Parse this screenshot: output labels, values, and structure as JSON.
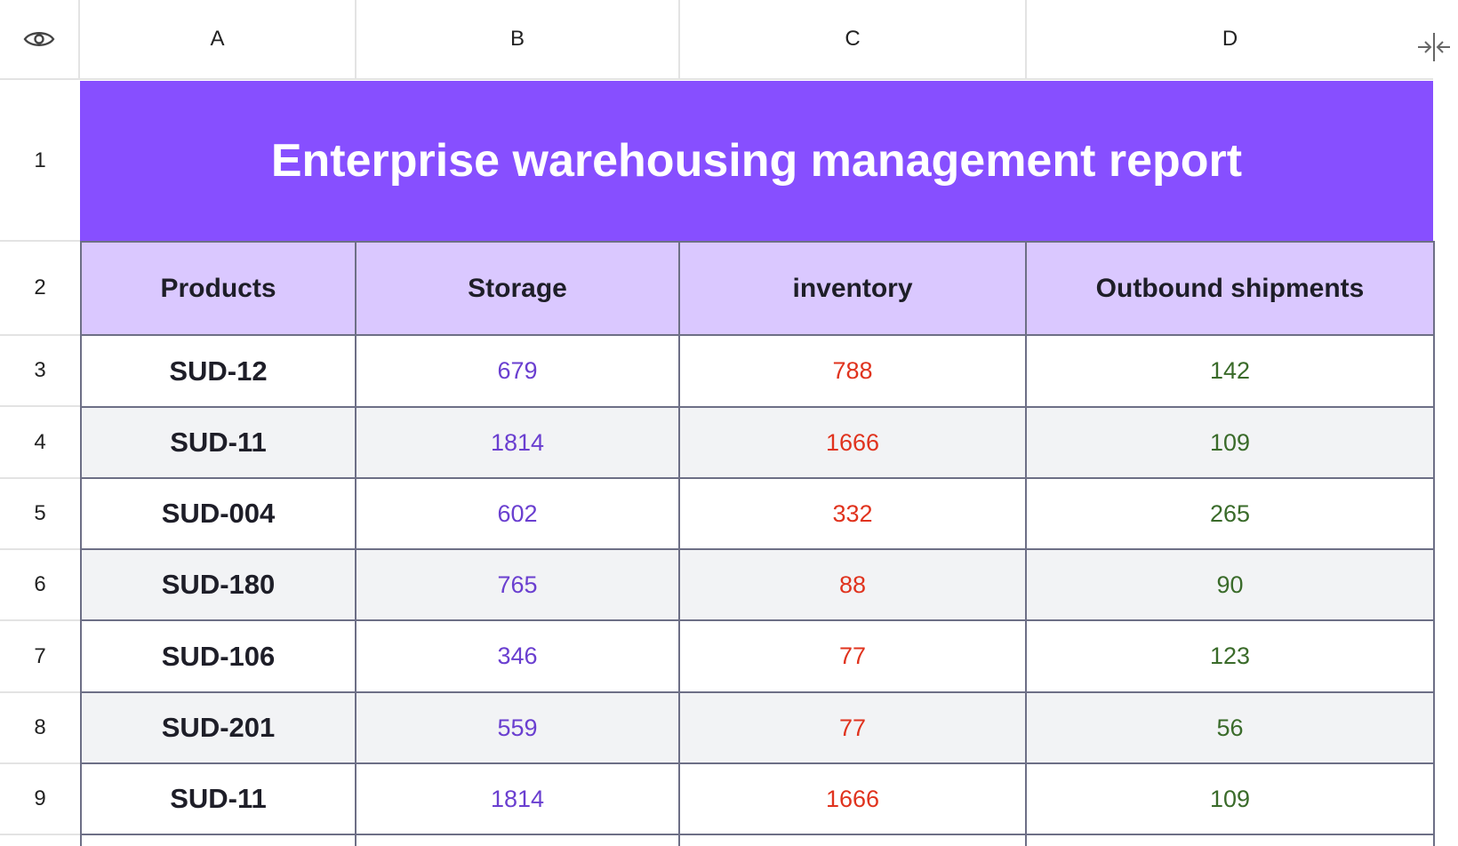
{
  "columns": [
    "A",
    "B",
    "C",
    "D"
  ],
  "row_numbers": [
    "1",
    "2",
    "3",
    "4",
    "5",
    "6",
    "7",
    "8",
    "9"
  ],
  "title": "Enterprise warehousing management report",
  "headers": [
    "Products",
    "Storage",
    "inventory",
    "Outbound shipments"
  ],
  "rows": [
    [
      "SUD-12",
      "679",
      "788",
      "142"
    ],
    [
      "SUD-11",
      "1814",
      "1666",
      "109"
    ],
    [
      "SUD-004",
      "602",
      "332",
      "265"
    ],
    [
      "SUD-180",
      "765",
      "88",
      "90"
    ],
    [
      "SUD-106",
      "346",
      "77",
      "123"
    ],
    [
      "SUD-201",
      "559",
      "77",
      "56"
    ],
    [
      "SUD-11",
      "1814",
      "1666",
      "109"
    ]
  ],
  "colors": {
    "title_bg": "#874fff",
    "header_bg": "#dac8ff",
    "storage": "#6a3fd0",
    "inventory": "#e0331e",
    "outbound": "#3a6b2a",
    "alt_row": "#f2f3f5"
  },
  "icons": {
    "visibility": "eye-icon",
    "collapse": "collapse-columns-icon"
  }
}
